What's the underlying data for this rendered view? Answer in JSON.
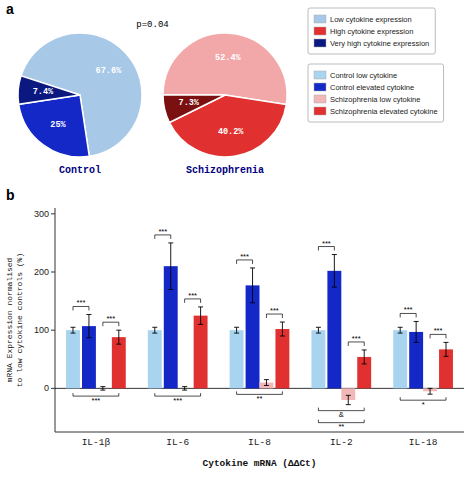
{
  "chart_data": [
    {
      "type": "pie",
      "title": "Control",
      "values": [
        67.6,
        25.0,
        7.4
      ],
      "value_labels": [
        "67.6%",
        "25%",
        "7.4%"
      ],
      "colors": [
        "#a8c8e8",
        "#1428c8",
        "#0a1880"
      ],
      "data_labels": true,
      "annotations": [
        {
          "text": "a",
          "kind": "panel"
        },
        {
          "text": "p=0.04",
          "kind": "p-value"
        }
      ]
    },
    {
      "type": "pie",
      "title": "Schizophrenia",
      "values": [
        52.4,
        40.2,
        7.3
      ],
      "value_labels": [
        "52.4%",
        "40.2%",
        "7.3%"
      ],
      "colors": [
        "#f2a8a8",
        "#e03030",
        "#7a1010"
      ],
      "data_labels": true
    },
    {
      "type": "legend",
      "legend": "upper right",
      "series": [
        {
          "name": "Low cytokine expression",
          "color": "#a8c8e8"
        },
        {
          "name": "High cytokine expression",
          "color": "#e03030"
        },
        {
          "name": "Very high cytokine expression",
          "color": "#0a1880"
        }
      ]
    },
    {
      "type": "bar",
      "categories": [
        "IL-1β",
        "IL-6",
        "IL-8",
        "IL-2",
        "IL-18"
      ],
      "series": [
        {
          "name": "Control low cytokine",
          "color": "#a8d4f0",
          "values": [
            100,
            100,
            100,
            100,
            100
          ],
          "errors": [
            5,
            5,
            5,
            5,
            5
          ]
        },
        {
          "name": "Control elevated cytokine",
          "color": "#1428c8",
          "values": [
            107,
            210,
            177,
            202,
            97
          ],
          "errors": [
            20,
            40,
            30,
            28,
            18
          ]
        },
        {
          "name": "Schizophrenia low cytokine",
          "color": "#f2b8b8",
          "values": [
            0,
            0,
            10,
            -20,
            -5
          ],
          "errors": [
            3,
            3,
            5,
            8,
            5
          ]
        },
        {
          "name": "Schizophrenia elevated cytokine",
          "color": "#e03030",
          "values": [
            88,
            125,
            102,
            54,
            67
          ],
          "errors": [
            12,
            15,
            12,
            12,
            12
          ]
        }
      ],
      "xlabel": "Cytokine mRNA (ΔΔCt)",
      "ylabel": "mRNA Expression normalised\nto low cytokine controls (%)",
      "ylim": [
        -75,
        310
      ],
      "yticks": [
        0,
        100,
        200,
        300
      ],
      "legend": "right",
      "annotations": [
        {
          "text": "b",
          "kind": "panel"
        },
        {
          "text": "***",
          "kind": "bracket",
          "category": 0,
          "series": [
            0,
            1
          ]
        },
        {
          "text": "***",
          "kind": "bracket",
          "category": 0,
          "series": [
            2,
            3
          ]
        },
        {
          "text": "***",
          "kind": "bracket",
          "category": 0,
          "series": [
            0,
            3
          ]
        },
        {
          "text": "***",
          "kind": "bracket",
          "category": 1,
          "series": [
            0,
            1
          ]
        },
        {
          "text": "***",
          "kind": "bracket",
          "category": 1,
          "series": [
            2,
            3
          ]
        },
        {
          "text": "***",
          "kind": "bracket",
          "category": 1,
          "series": [
            0,
            3
          ]
        },
        {
          "text": "***",
          "kind": "bracket",
          "category": 2,
          "series": [
            0,
            1
          ]
        },
        {
          "text": "***",
          "kind": "bracket",
          "category": 2,
          "series": [
            2,
            3
          ]
        },
        {
          "text": "**",
          "kind": "bracket",
          "category": 2,
          "series": [
            0,
            3
          ]
        },
        {
          "text": "***",
          "kind": "bracket",
          "category": 3,
          "series": [
            0,
            1
          ]
        },
        {
          "text": "***",
          "kind": "bracket",
          "category": 3,
          "series": [
            2,
            3
          ]
        },
        {
          "text": "&",
          "kind": "bracket",
          "category": 3,
          "series": [
            0,
            3
          ]
        },
        {
          "text": "**",
          "kind": "bracket",
          "category": 3,
          "series": [
            0,
            3
          ]
        },
        {
          "text": "***",
          "kind": "bracket",
          "category": 4,
          "series": [
            0,
            1
          ]
        },
        {
          "text": "***",
          "kind": "bracket",
          "category": 4,
          "series": [
            2,
            3
          ]
        },
        {
          "text": "*",
          "kind": "bracket",
          "category": 4,
          "series": [
            0,
            3
          ]
        }
      ]
    }
  ]
}
